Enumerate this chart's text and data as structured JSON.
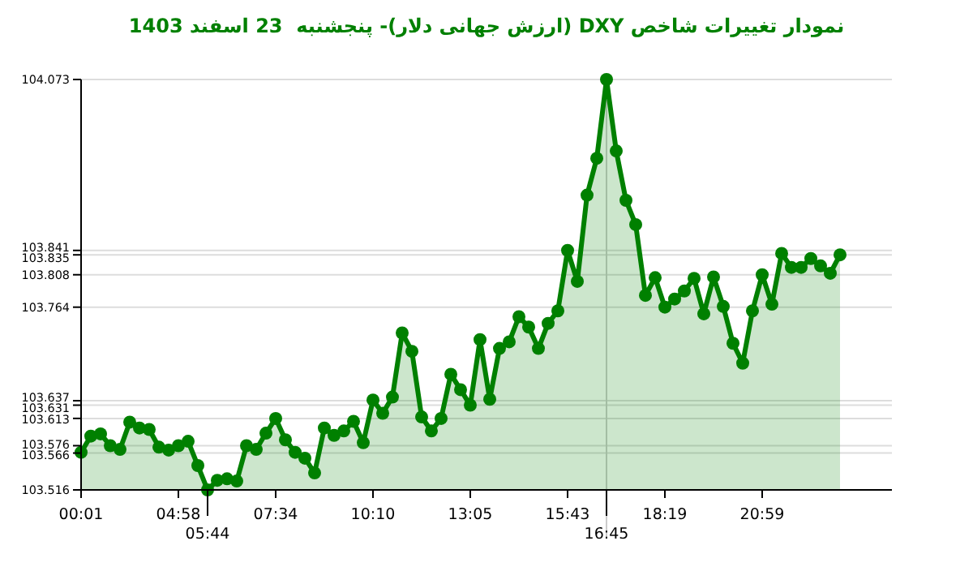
{
  "chart_data": {
    "type": "area",
    "title": "نمودار تغییرات شاخص DXY (ارزش جهانی دلار)- پنجشنبه  23 اسفند 1403",
    "categories": [
      "00:01",
      null,
      null,
      null,
      null,
      null,
      null,
      null,
      null,
      null,
      "04:58",
      null,
      null,
      "05:44",
      null,
      null,
      null,
      null,
      null,
      null,
      "07:34",
      null,
      null,
      null,
      null,
      null,
      null,
      null,
      null,
      null,
      "10:10",
      null,
      null,
      null,
      null,
      null,
      null,
      null,
      null,
      null,
      "13:05",
      null,
      null,
      null,
      null,
      null,
      null,
      null,
      null,
      null,
      "15:43",
      null,
      null,
      null,
      "16:45",
      null,
      null,
      null,
      null,
      null,
      "18:19",
      null,
      null,
      null,
      null,
      null,
      null,
      null,
      null,
      null,
      "20:59",
      null,
      null,
      null,
      null,
      null,
      null,
      null,
      null
    ],
    "values": [
      103.567,
      103.589,
      103.592,
      103.576,
      103.571,
      103.608,
      103.6,
      103.598,
      103.574,
      103.57,
      103.576,
      103.582,
      103.549,
      103.516,
      103.529,
      103.531,
      103.528,
      103.576,
      103.571,
      103.593,
      103.613,
      103.584,
      103.567,
      103.559,
      103.539,
      103.6,
      103.59,
      103.596,
      103.609,
      103.58,
      103.638,
      103.62,
      103.642,
      103.729,
      103.704,
      103.615,
      103.596,
      103.613,
      103.673,
      103.652,
      103.631,
      103.72,
      103.639,
      103.708,
      103.717,
      103.751,
      103.737,
      103.708,
      103.742,
      103.759,
      103.841,
      103.799,
      103.916,
      103.966,
      104.073,
      103.976,
      103.909,
      103.876,
      103.78,
      103.804,
      103.764,
      103.775,
      103.786,
      103.803,
      103.755,
      103.805,
      103.765,
      103.715,
      103.688,
      103.759,
      103.808,
      103.768,
      103.837,
      103.818,
      103.818,
      103.83,
      103.82,
      103.81,
      103.835
    ],
    "color": "#008000",
    "marker": "circle",
    "ylim": [
      103.516,
      104.073
    ],
    "yticks": [
      103.516,
      103.566,
      103.576,
      103.613,
      103.631,
      103.637,
      103.764,
      103.808,
      103.835,
      103.841,
      104.073
    ],
    "grid": "y",
    "ref_lines": [
      {
        "axis": "x",
        "value": "16:45",
        "color": "#cccccc"
      }
    ]
  }
}
